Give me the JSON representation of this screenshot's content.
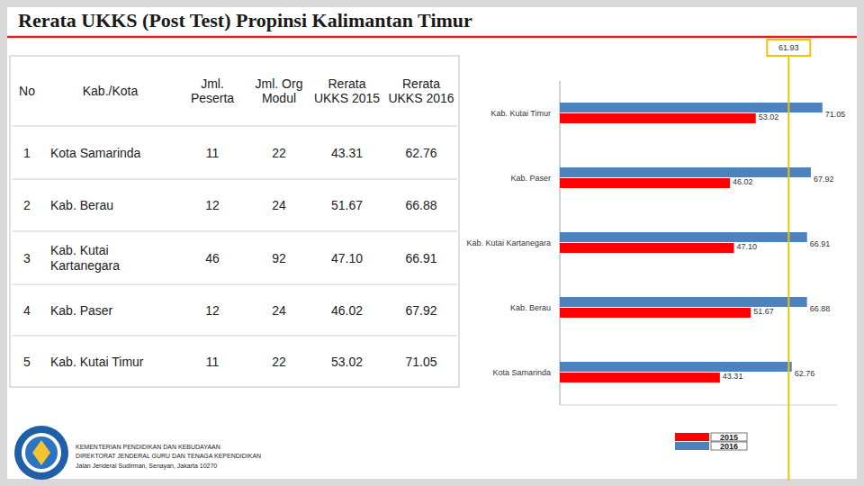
{
  "header": {
    "title": "Rerata UKKS (Post Test) Propinsi Kalimantan Timur"
  },
  "table": {
    "columns": [
      "No",
      "Kab./Kota",
      "Jml.\nPeserta",
      "Jml. Org\nModul",
      "Rerata\nUKKS 2015",
      "Rerata\nUKKS 2016"
    ],
    "rows": [
      [
        "1",
        "Kota Samarinda",
        "11",
        "22",
        "43.31",
        "62.76"
      ],
      [
        "2",
        "Kab. Berau",
        "12",
        "24",
        "51.67",
        "66.88"
      ],
      [
        "3",
        "Kab. Kutai\nKartanegara",
        "46",
        "92",
        "47.10",
        "66.91"
      ],
      [
        "4",
        "Kab. Paser",
        "12",
        "24",
        "46.02",
        "67.92"
      ],
      [
        "5",
        "Kab. Kutai Timur",
        "11",
        "22",
        "53.02",
        "71.05"
      ]
    ]
  },
  "chart_data": {
    "type": "bar",
    "orientation": "horizontal",
    "categories": [
      "Kab. Kutai Timur",
      "Kab. Paser",
      "Kab. Kutai Kartanegara",
      "Kab. Berau",
      "Kota Samarinda"
    ],
    "series": [
      {
        "name": "2015",
        "color": "#ff0000",
        "values": [
          53.02,
          46.02,
          47.1,
          51.67,
          43.31
        ],
        "value_labels": [
          "53.02",
          "46.02",
          "47.10",
          "51.67",
          "43.31"
        ]
      },
      {
        "name": "2016",
        "color": "#4f81bd",
        "values": [
          71.05,
          67.92,
          66.91,
          66.88,
          62.76
        ],
        "value_labels": [
          "71.05",
          "67.92",
          "66.91",
          "66.88",
          "62.76"
        ]
      }
    ],
    "xlim": [
      0,
      75
    ],
    "tick_labels": "y",
    "data_labels": true,
    "legend": "bottom",
    "reference_line": {
      "value": 61.93,
      "label": "61.93",
      "color": "#f2c200"
    }
  },
  "footer": {
    "lines": [
      "KEMENTERIAN PENDIDIKAN DAN KEBUDAYAAN",
      "DIREKTORAT JENDERAL GURU DAN TENAGA KEPENDIDIKAN",
      "Jalan Jenderal Sudirman, Senayan, Jakarta 10270"
    ]
  }
}
